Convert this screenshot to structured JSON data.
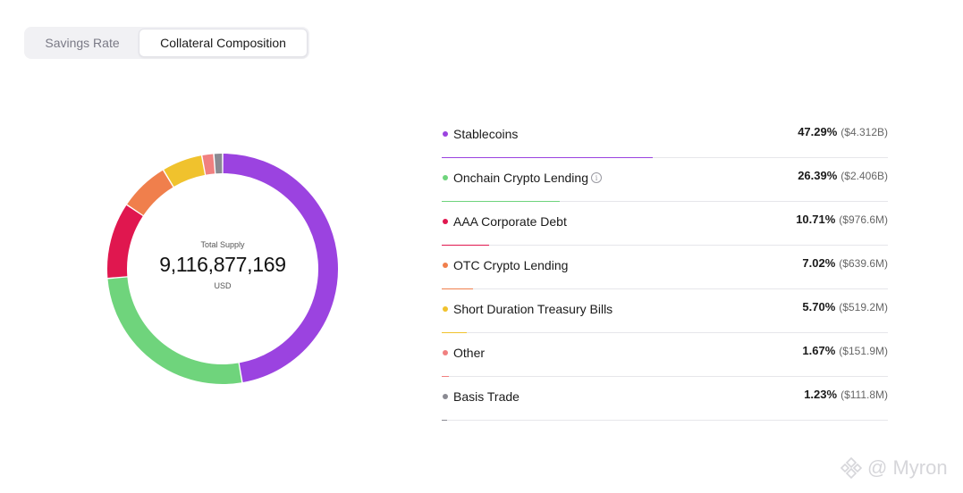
{
  "tabs": [
    {
      "label": "Savings Rate",
      "active": false
    },
    {
      "label": "Collateral Composition",
      "active": true
    }
  ],
  "center": {
    "label": "Total Supply",
    "value": "9,116,877,169",
    "unit": "USD"
  },
  "watermark": "@ Myron",
  "chart_data": {
    "type": "pie",
    "total": 9116877169,
    "categories": [
      "Stablecoins",
      "Onchain Crypto Lending",
      "AAA Corporate Debt",
      "OTC Crypto Lending",
      "Short Duration Treasury Bills",
      "Other",
      "Basis Trade"
    ],
    "values": [
      47.29,
      26.39,
      10.71,
      7.02,
      5.7,
      1.67,
      1.23
    ],
    "percent_labels": [
      "47.29%",
      "26.39%",
      "10.71%",
      "7.02%",
      "5.70%",
      "1.67%",
      "1.23%"
    ],
    "amount_labels": [
      "($4.312B)",
      "($2.406B)",
      "($976.6M)",
      "($639.6M)",
      "($519.2M)",
      "($151.9M)",
      "($111.8M)"
    ],
    "colors": [
      "#9b43e0",
      "#6fd47c",
      "#e0174f",
      "#f07f4c",
      "#f0c22d",
      "#f08080",
      "#8a8a92"
    ],
    "info_icon": [
      false,
      true,
      false,
      false,
      false,
      false,
      false
    ],
    "legend_placement": "right"
  }
}
